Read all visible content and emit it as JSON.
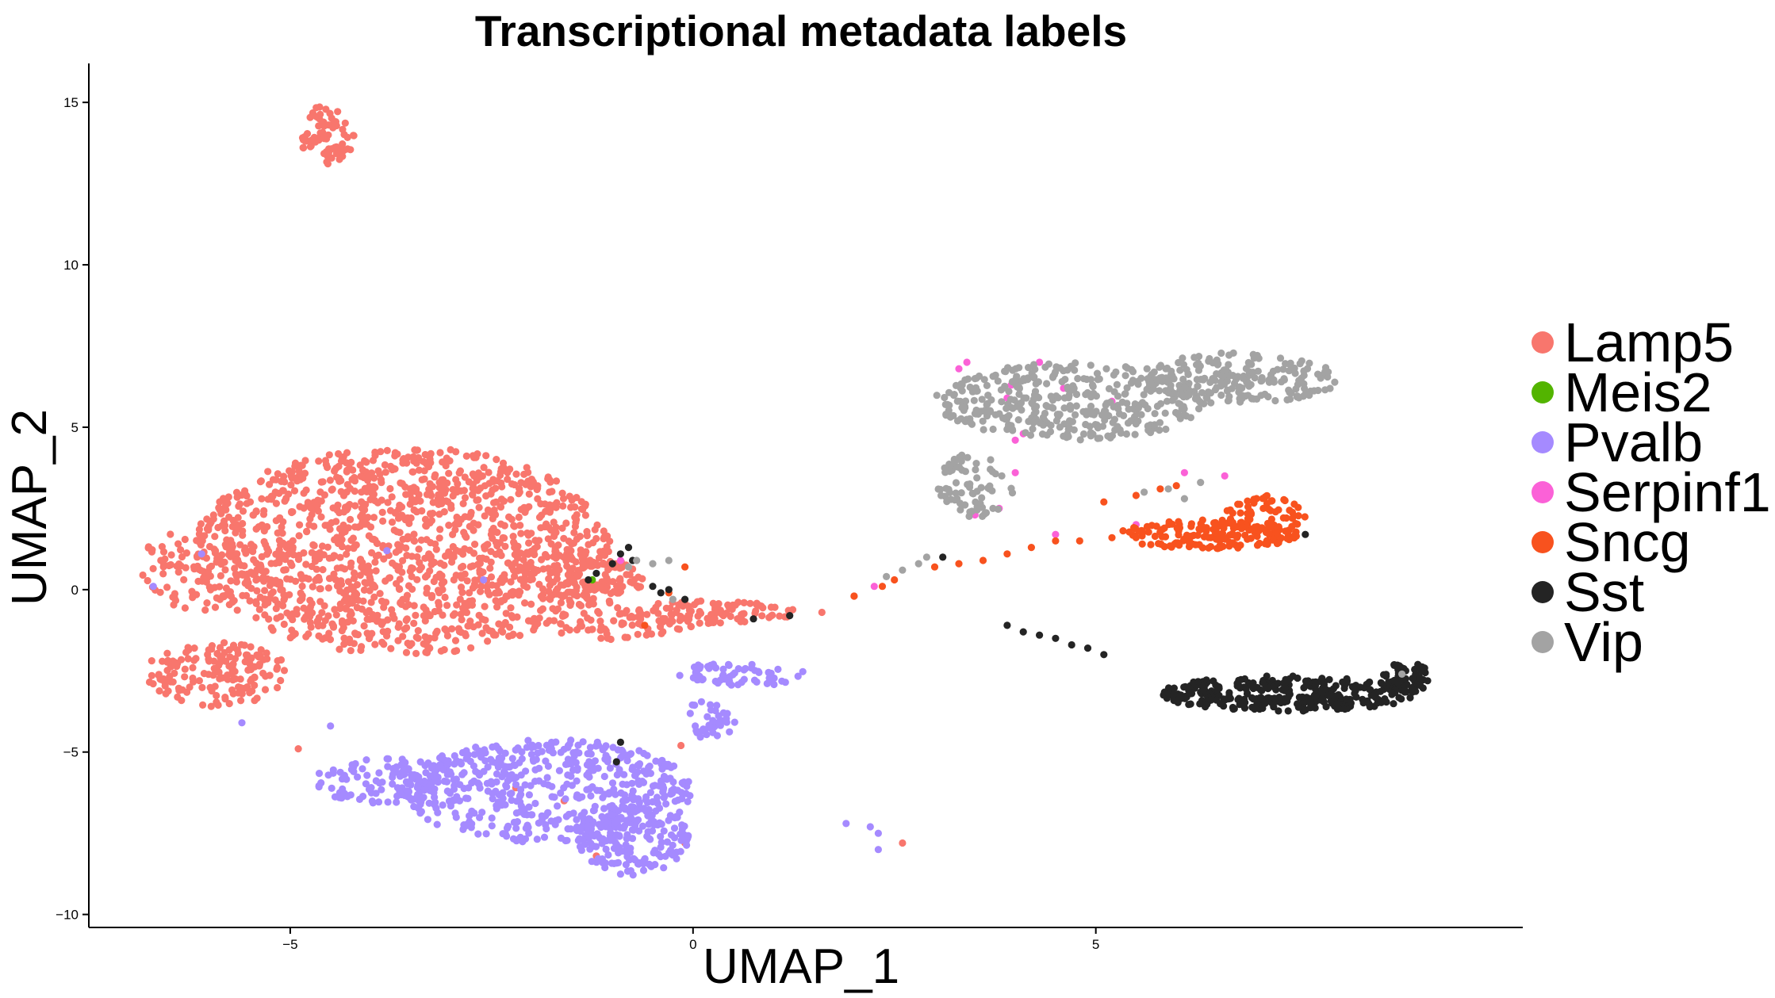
{
  "chart_data": {
    "type": "scatter",
    "title": "Transcriptional metadata labels",
    "xlabel": "UMAP_1",
    "ylabel": "UMAP_2",
    "xlim": [
      -7.5,
      10.3
    ],
    "ylim": [
      -10.4,
      16.2
    ],
    "xticks": [
      -5,
      0,
      5
    ],
    "yticks": [
      -10,
      -5,
      0,
      5,
      10,
      15
    ],
    "grid": false,
    "legend_position": "right",
    "series": [
      {
        "name": "Lamp5",
        "color": "#F8766D",
        "clusters": [
          {
            "cx": -3.6,
            "cy": 1.2,
            "rx": 2.6,
            "ry": 3.2,
            "n": 1400
          },
          {
            "cx": -5.9,
            "cy": -2.6,
            "rx": 0.9,
            "ry": 1.0,
            "n": 160
          },
          {
            "cx": -6.2,
            "cy": 0.6,
            "rx": 0.7,
            "ry": 1.4,
            "n": 90
          },
          {
            "cx": -4.55,
            "cy": 14.0,
            "rx": 0.35,
            "ry": 0.9,
            "n": 70
          },
          {
            "cx": -1.4,
            "cy": 0.3,
            "rx": 0.8,
            "ry": 0.8,
            "n": 120
          },
          {
            "cx": 0.1,
            "cy": -0.7,
            "rx": 1.2,
            "ry": 0.35,
            "n": 110
          },
          {
            "cx": -0.9,
            "cy": -1.1,
            "rx": 0.9,
            "ry": 0.45,
            "n": 60
          }
        ],
        "points": [
          [
            -2.2,
            -6.1
          ],
          [
            -1.6,
            -6.5
          ],
          [
            -1.2,
            -8.2
          ],
          [
            -0.6,
            -8.3
          ],
          [
            -0.1,
            -7.8
          ],
          [
            -4.9,
            -4.9
          ],
          [
            -0.15,
            -4.8
          ],
          [
            2.6,
            -7.8
          ],
          [
            1.6,
            -0.7
          ],
          [
            2.0,
            -0.2
          ]
        ]
      },
      {
        "name": "Meis2",
        "color": "#53B400",
        "clusters": [],
        "points": [
          [
            -1.25,
            0.3
          ]
        ]
      },
      {
        "name": "Pvalb",
        "color": "#A58AFF",
        "clusters": [
          {
            "cx": -1.8,
            "cy": -6.2,
            "rx": 1.8,
            "ry": 1.6,
            "n": 520
          },
          {
            "cx": -0.75,
            "cy": -7.6,
            "rx": 0.7,
            "ry": 1.2,
            "n": 180
          },
          {
            "cx": -3.8,
            "cy": -5.9,
            "rx": 0.9,
            "ry": 0.7,
            "n": 110
          },
          {
            "cx": 0.6,
            "cy": -2.6,
            "rx": 0.8,
            "ry": 0.4,
            "n": 60
          },
          {
            "cx": 0.2,
            "cy": -4.0,
            "rx": 0.35,
            "ry": 0.6,
            "n": 35
          }
        ],
        "points": [
          [
            -6.7,
            0.1
          ],
          [
            -6.1,
            1.1
          ],
          [
            -5.6,
            -4.1
          ],
          [
            -4.5,
            -4.2
          ],
          [
            1.9,
            -7.2
          ],
          [
            2.2,
            -7.3
          ],
          [
            2.3,
            -7.5
          ],
          [
            2.3,
            -8.0
          ],
          [
            -3.8,
            1.2
          ],
          [
            -2.6,
            0.3
          ]
        ]
      },
      {
        "name": "Serpinf1",
        "color": "#FB61D7",
        "clusters": [],
        "points": [
          [
            3.3,
            6.8
          ],
          [
            3.4,
            7.0
          ],
          [
            3.9,
            5.9
          ],
          [
            3.95,
            6.3
          ],
          [
            4.0,
            4.6
          ],
          [
            4.1,
            4.8
          ],
          [
            4.3,
            7.0
          ],
          [
            4.0,
            3.6
          ],
          [
            3.5,
            2.3
          ],
          [
            4.5,
            1.7
          ],
          [
            4.6,
            6.2
          ],
          [
            5.2,
            5.8
          ],
          [
            6.1,
            3.6
          ],
          [
            6.6,
            3.5
          ],
          [
            5.5,
            2.0
          ],
          [
            2.25,
            0.1
          ],
          [
            -0.9,
            0.9
          ],
          [
            3.8,
            2.5
          ]
        ]
      },
      {
        "name": "Sncg",
        "color": "#F8521E",
        "clusters": [
          {
            "cx": 6.4,
            "cy": 1.7,
            "rx": 1.1,
            "ry": 0.45,
            "n": 170
          },
          {
            "cx": 7.1,
            "cy": 2.3,
            "rx": 0.5,
            "ry": 0.6,
            "n": 60
          }
        ],
        "points": [
          [
            2.0,
            -0.2
          ],
          [
            2.35,
            0.1
          ],
          [
            2.5,
            0.3
          ],
          [
            3.0,
            0.7
          ],
          [
            3.3,
            0.8
          ],
          [
            3.6,
            0.9
          ],
          [
            3.9,
            1.1
          ],
          [
            4.2,
            1.3
          ],
          [
            4.5,
            1.5
          ],
          [
            4.8,
            1.5
          ],
          [
            5.2,
            1.6
          ],
          [
            5.5,
            1.6
          ],
          [
            5.1,
            2.7
          ],
          [
            5.5,
            2.9
          ],
          [
            5.8,
            3.1
          ],
          [
            6.0,
            3.2
          ],
          [
            -0.6,
            -1.1
          ],
          [
            -0.1,
            0.7
          ],
          [
            -0.3,
            -0.1
          ]
        ]
      },
      {
        "name": "Sst",
        "color": "#242424",
        "clusters": [
          {
            "cx": 7.4,
            "cy": -3.2,
            "rx": 1.6,
            "ry": 0.55,
            "n": 300
          },
          {
            "cx": 8.85,
            "cy": -2.7,
            "rx": 0.3,
            "ry": 0.5,
            "n": 60
          }
        ],
        "points": [
          [
            3.9,
            -1.1
          ],
          [
            4.1,
            -1.3
          ],
          [
            4.3,
            -1.4
          ],
          [
            4.5,
            -1.5
          ],
          [
            4.7,
            -1.7
          ],
          [
            4.9,
            -1.8
          ],
          [
            5.1,
            -2.0
          ],
          [
            7.6,
            1.7
          ],
          [
            3.1,
            1.0
          ],
          [
            -1.3,
            0.3
          ],
          [
            -1.2,
            0.5
          ],
          [
            -1.0,
            0.8
          ],
          [
            -0.9,
            1.1
          ],
          [
            -0.75,
            0.9
          ],
          [
            -0.8,
            1.3
          ],
          [
            -0.5,
            0.1
          ],
          [
            -0.4,
            -0.1
          ],
          [
            -0.3,
            0.0
          ],
          [
            -0.1,
            -0.3
          ],
          [
            0.75,
            -0.9
          ],
          [
            1.2,
            -0.8
          ],
          [
            -0.95,
            -5.3
          ],
          [
            -0.9,
            -4.7
          ]
        ]
      },
      {
        "name": "Vip",
        "color": "#A3A3A3",
        "clusters": [
          {
            "cx": 4.7,
            "cy": 5.8,
            "rx": 1.7,
            "ry": 1.2,
            "n": 380
          },
          {
            "cx": 6.8,
            "cy": 6.5,
            "rx": 1.2,
            "ry": 0.8,
            "n": 200
          },
          {
            "cx": 3.5,
            "cy": 3.2,
            "rx": 0.5,
            "ry": 1.0,
            "n": 70
          }
        ],
        "points": [
          [
            2.4,
            0.4
          ],
          [
            2.6,
            0.6
          ],
          [
            2.8,
            0.8
          ],
          [
            2.9,
            1.0
          ],
          [
            5.6,
            3.0
          ],
          [
            5.9,
            3.1
          ],
          [
            6.1,
            2.8
          ],
          [
            6.3,
            3.3
          ],
          [
            -0.8,
            0.7
          ],
          [
            -0.7,
            0.9
          ],
          [
            -0.5,
            0.8
          ],
          [
            -0.3,
            0.9
          ],
          [
            -0.25,
            -0.3
          ],
          [
            8.8,
            -2.6
          ]
        ]
      }
    ]
  }
}
